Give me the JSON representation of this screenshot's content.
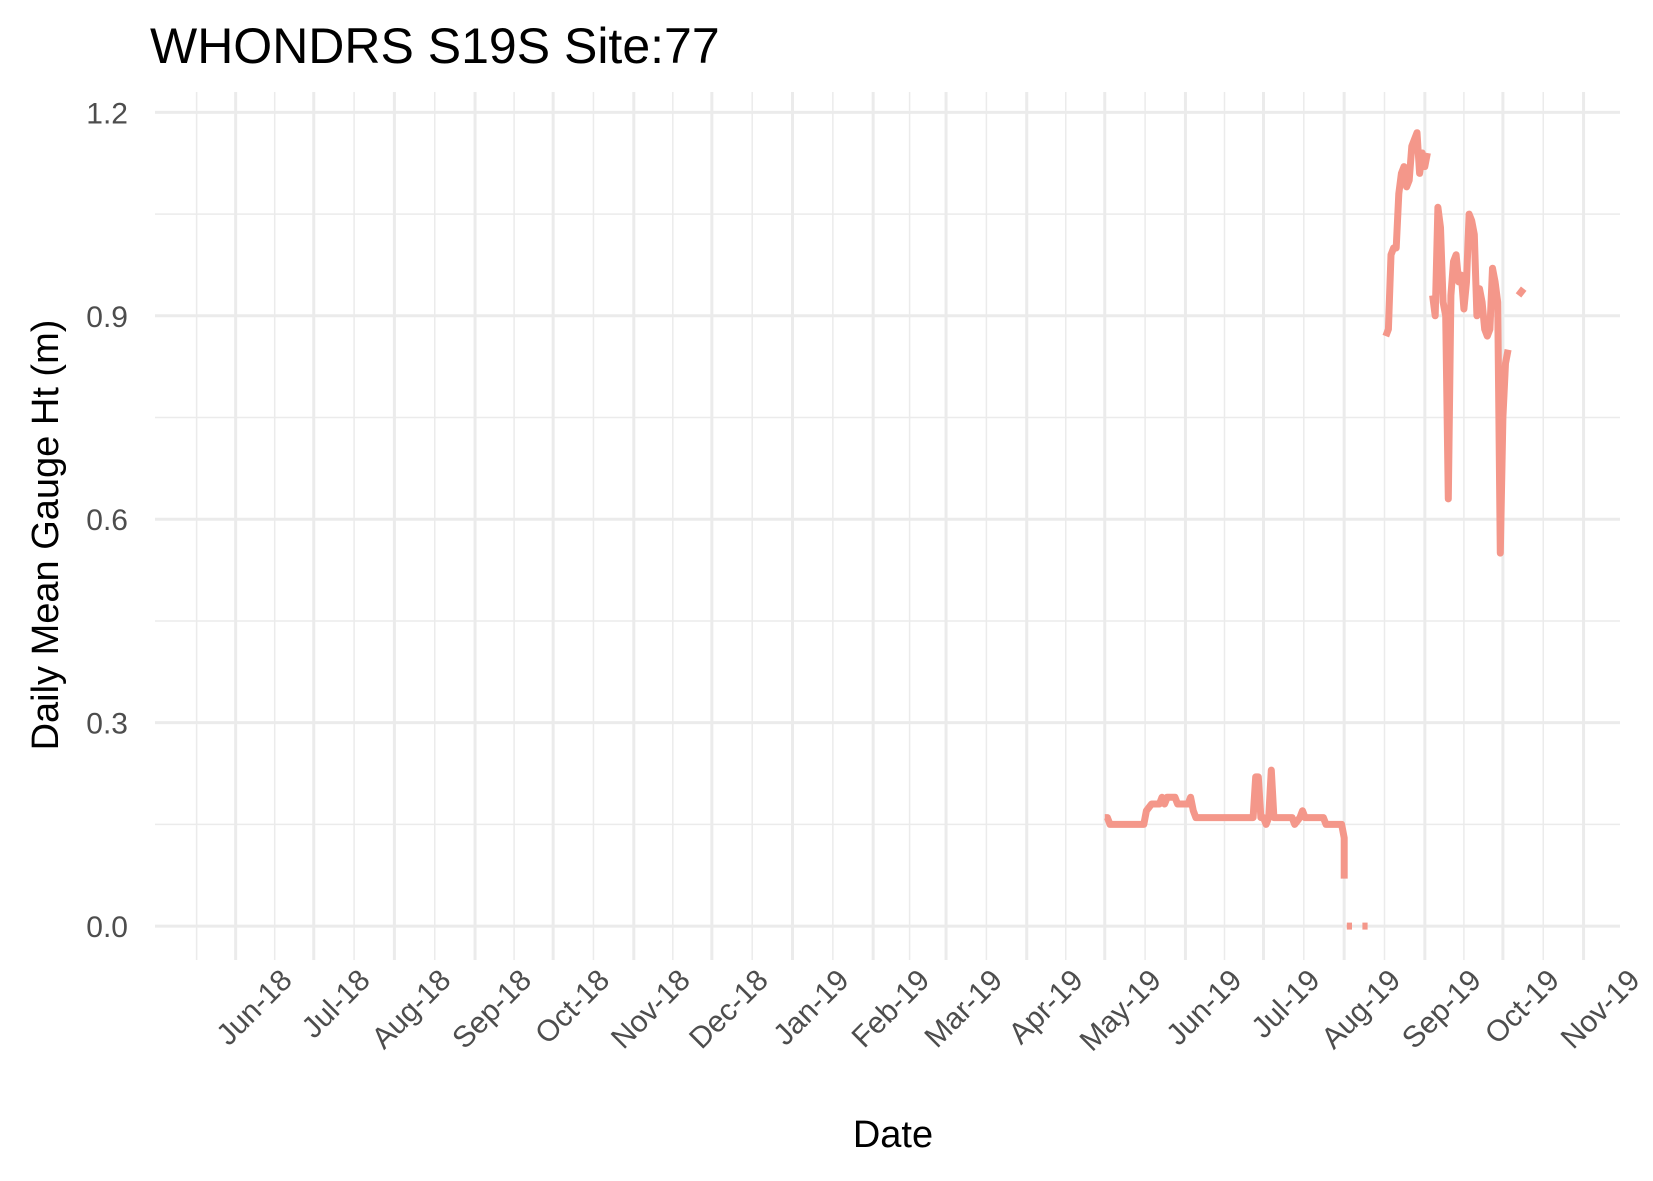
{
  "chart_data": {
    "type": "line",
    "title": "WHONDRS S19S Site:77",
    "xlabel": "Date",
    "ylabel": "Daily Mean Gauge Ht (m)",
    "xlim": [
      "2018-05-01",
      "2019-11-15"
    ],
    "ylim": [
      -0.05,
      1.23
    ],
    "x_ticks": [
      {
        "date": "2018-06-01",
        "label": "Jun-18"
      },
      {
        "date": "2018-07-01",
        "label": "Jul-18"
      },
      {
        "date": "2018-08-01",
        "label": "Aug-18"
      },
      {
        "date": "2018-09-01",
        "label": "Sep-18"
      },
      {
        "date": "2018-10-01",
        "label": "Oct-18"
      },
      {
        "date": "2018-11-01",
        "label": "Nov-18"
      },
      {
        "date": "2018-12-01",
        "label": "Dec-18"
      },
      {
        "date": "2019-01-01",
        "label": "Jan-19"
      },
      {
        "date": "2019-02-01",
        "label": "Feb-19"
      },
      {
        "date": "2019-03-01",
        "label": "Mar-19"
      },
      {
        "date": "2019-04-01",
        "label": "Apr-19"
      },
      {
        "date": "2019-05-01",
        "label": "May-19"
      },
      {
        "date": "2019-06-01",
        "label": "Jun-19"
      },
      {
        "date": "2019-07-01",
        "label": "Jul-19"
      },
      {
        "date": "2019-08-01",
        "label": "Aug-19"
      },
      {
        "date": "2019-09-01",
        "label": "Sep-19"
      },
      {
        "date": "2019-10-01",
        "label": "Oct-19"
      },
      {
        "date": "2019-11-01",
        "label": "Nov-19"
      }
    ],
    "y_ticks": [
      {
        "value": 0.0,
        "label": "0.0"
      },
      {
        "value": 0.3,
        "label": "0.3"
      },
      {
        "value": 0.6,
        "label": "0.6"
      },
      {
        "value": 0.9,
        "label": "0.9"
      },
      {
        "value": 1.2,
        "label": "1.2"
      }
    ],
    "grid": true,
    "legend": "none",
    "color": "#f4978a",
    "segments": [
      [
        [
          "2019-05-01",
          0.16
        ],
        [
          "2019-05-02",
          0.16
        ],
        [
          "2019-05-03",
          0.15
        ],
        [
          "2019-05-10",
          0.15
        ],
        [
          "2019-05-16",
          0.15
        ],
        [
          "2019-05-17",
          0.17
        ],
        [
          "2019-05-19",
          0.18
        ],
        [
          "2019-05-22",
          0.18
        ],
        [
          "2019-05-23",
          0.19
        ],
        [
          "2019-05-24",
          0.18
        ],
        [
          "2019-05-25",
          0.19
        ],
        [
          "2019-05-28",
          0.19
        ],
        [
          "2019-05-29",
          0.18
        ],
        [
          "2019-06-02",
          0.18
        ],
        [
          "2019-06-03",
          0.19
        ],
        [
          "2019-06-04",
          0.17
        ],
        [
          "2019-06-05",
          0.16
        ],
        [
          "2019-06-15",
          0.16
        ],
        [
          "2019-06-25",
          0.16
        ],
        [
          "2019-06-27",
          0.16
        ],
        [
          "2019-06-28",
          0.22
        ],
        [
          "2019-06-29",
          0.22
        ],
        [
          "2019-06-30",
          0.16
        ],
        [
          "2019-07-01",
          0.16
        ],
        [
          "2019-07-02",
          0.15
        ],
        [
          "2019-07-03",
          0.16
        ],
        [
          "2019-07-04",
          0.23
        ],
        [
          "2019-07-05",
          0.16
        ],
        [
          "2019-07-06",
          0.16
        ],
        [
          "2019-07-10",
          0.16
        ],
        [
          "2019-07-12",
          0.16
        ],
        [
          "2019-07-13",
          0.15
        ],
        [
          "2019-07-15",
          0.16
        ],
        [
          "2019-07-16",
          0.17
        ],
        [
          "2019-07-17",
          0.16
        ],
        [
          "2019-07-24",
          0.16
        ],
        [
          "2019-07-25",
          0.15
        ],
        [
          "2019-07-30",
          0.15
        ],
        [
          "2019-07-31",
          0.15
        ],
        [
          "2019-08-01",
          0.13
        ],
        [
          "2019-08-01",
          0.07
        ]
      ],
      [
        [
          "2019-08-02",
          0.0
        ],
        [
          "2019-08-04",
          0.0
        ]
      ],
      [
        [
          "2019-08-08",
          0.0
        ],
        [
          "2019-08-10",
          0.0
        ]
      ],
      [
        [
          "2019-08-17",
          0.87
        ],
        [
          "2019-08-18",
          0.88
        ],
        [
          "2019-08-19",
          0.99
        ],
        [
          "2019-08-20",
          1.0
        ],
        [
          "2019-08-21",
          1.0
        ],
        [
          "2019-08-22",
          1.08
        ],
        [
          "2019-08-23",
          1.11
        ],
        [
          "2019-08-24",
          1.12
        ],
        [
          "2019-08-25",
          1.09
        ],
        [
          "2019-08-26",
          1.1
        ],
        [
          "2019-08-27",
          1.15
        ],
        [
          "2019-08-28",
          1.16
        ],
        [
          "2019-08-29",
          1.17
        ],
        [
          "2019-08-30",
          1.11
        ],
        [
          "2019-08-31",
          1.14
        ],
        [
          "2019-09-01",
          1.12
        ],
        [
          "2019-09-02",
          1.14
        ]
      ],
      [
        [
          "2019-09-04",
          0.93
        ],
        [
          "2019-09-05",
          0.9
        ],
        [
          "2019-09-06",
          1.06
        ],
        [
          "2019-09-07",
          1.03
        ],
        [
          "2019-09-08",
          0.92
        ],
        [
          "2019-09-09",
          0.9
        ],
        [
          "2019-09-10",
          0.63
        ],
        [
          "2019-09-11",
          0.93
        ],
        [
          "2019-09-12",
          0.98
        ],
        [
          "2019-09-13",
          0.99
        ],
        [
          "2019-09-14",
          0.95
        ],
        [
          "2019-09-15",
          0.96
        ],
        [
          "2019-09-16",
          0.91
        ],
        [
          "2019-09-17",
          0.95
        ],
        [
          "2019-09-18",
          1.05
        ],
        [
          "2019-09-19",
          1.04
        ],
        [
          "2019-09-20",
          1.02
        ],
        [
          "2019-09-21",
          0.9
        ],
        [
          "2019-09-22",
          0.94
        ],
        [
          "2019-09-23",
          0.92
        ],
        [
          "2019-09-24",
          0.88
        ],
        [
          "2019-09-25",
          0.87
        ],
        [
          "2019-09-26",
          0.88
        ],
        [
          "2019-09-27",
          0.97
        ],
        [
          "2019-09-28",
          0.95
        ],
        [
          "2019-09-29",
          0.92
        ],
        [
          "2019-09-30",
          0.55
        ],
        [
          "2019-10-01",
          0.75
        ],
        [
          "2019-10-02",
          0.83
        ],
        [
          "2019-10-03",
          0.85
        ]
      ],
      [
        [
          "2019-10-07",
          0.93
        ],
        [
          "2019-10-09",
          0.94
        ]
      ]
    ]
  }
}
